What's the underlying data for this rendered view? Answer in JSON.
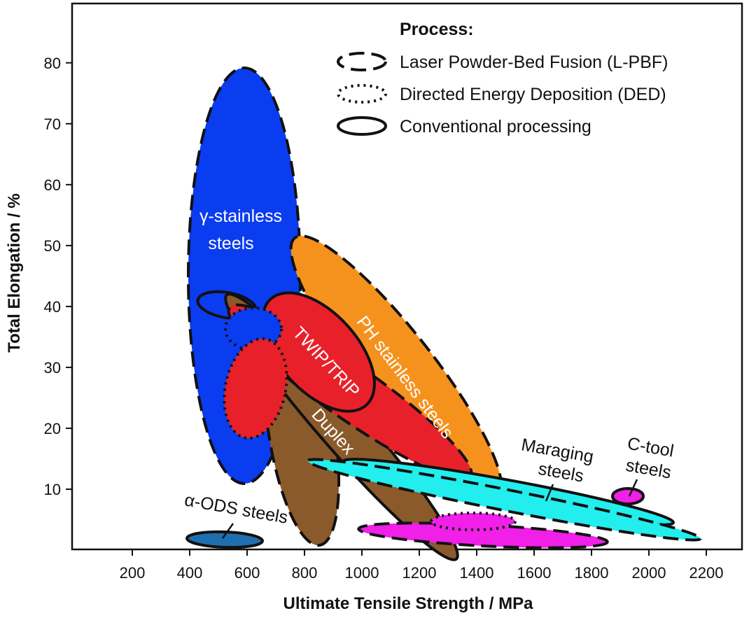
{
  "chart_data": {
    "type": "scatter",
    "xlabel": "Ultimate Tensile Strength / MPa",
    "ylabel": "Total Elongation / %",
    "xlim": [
      0,
      2350
    ],
    "ylim": [
      0,
      90
    ],
    "xticks": [
      200,
      400,
      600,
      800,
      1000,
      1200,
      1400,
      1600,
      1800,
      2000,
      2200
    ],
    "yticks": [
      10,
      20,
      30,
      40,
      50,
      60,
      70,
      80
    ],
    "legend": {
      "title": "Process:",
      "placement": "top-right",
      "entries": [
        {
          "style": "dashed",
          "label": "Laser Powder-Bed Fusion (L-PBF)"
        },
        {
          "style": "dotted",
          "label": "Directed Energy Deposition (DED)"
        },
        {
          "style": "solid",
          "label": "Conventional processing"
        }
      ]
    },
    "colors": {
      "gamma_stainless": "#0a3df0",
      "duplex": "#8b5a2b",
      "twip_trip": "#e8202a",
      "ph_stainless": "#f5921e",
      "maraging": "#22eeee",
      "c_tool": "#f020e8",
      "alpha_ods": "#1f6fb0"
    },
    "regions": [
      {
        "name": "γ-stainless steels",
        "process": "L-PBF",
        "color": "#0a3df0",
        "uts_range": [
          400,
          800
        ],
        "elongation_range": [
          11,
          79
        ]
      },
      {
        "name": "γ-stainless steels",
        "process": "Conventional",
        "color": "#0a3df0",
        "uts_range": [
          470,
          640
        ],
        "elongation_range": [
          37,
          42
        ]
      },
      {
        "name": "γ-stainless steels",
        "process": "DED",
        "color": "#0a3df0",
        "uts_range": [
          580,
          720
        ],
        "elongation_range": [
          29,
          40
        ]
      },
      {
        "name": "Duplex",
        "process": "L-PBF",
        "color": "#8b5a2b",
        "uts_range": [
          660,
          940
        ],
        "elongation_range": [
          1,
          39
        ]
      },
      {
        "name": "Duplex",
        "process": "Conventional",
        "color": "#8b5a2b",
        "uts_range": [
          800,
          1370
        ],
        "elongation_range": [
          1,
          32
        ]
      },
      {
        "name": "TWIP/TRIP",
        "process": "L-PBF",
        "color": "#e8202a",
        "uts_range": [
          680,
          1350
        ],
        "elongation_range": [
          10,
          40
        ]
      },
      {
        "name": "TWIP/TRIP",
        "process": "DED",
        "color": "#e8202a",
        "uts_range": [
          570,
          720
        ],
        "elongation_range": [
          18,
          35
        ]
      },
      {
        "name": "TWIP/TRIP",
        "process": "Conventional",
        "color": "#e8202a",
        "uts_range": [
          700,
          1030
        ],
        "elongation_range": [
          22,
          43
        ]
      },
      {
        "name": "PH stainless steels",
        "process": "L-PBF",
        "color": "#f5921e",
        "uts_range": [
          780,
          1480
        ],
        "elongation_range": [
          9,
          49
        ]
      },
      {
        "name": "Maraging steels",
        "process": "L-PBF",
        "color": "#22eeee",
        "uts_range": [
          830,
          2200
        ],
        "elongation_range": [
          1,
          16
        ]
      },
      {
        "name": "Maraging steels",
        "process": "Conventional",
        "color": "#22eeee",
        "uts_range": [
          1000,
          2100
        ],
        "elongation_range": [
          3,
          11
        ]
      },
      {
        "name": "C-tool steels",
        "process": "Conventional",
        "color": "#f020e8",
        "uts_range": [
          1910,
          1990
        ],
        "elongation_range": [
          8,
          11
        ]
      },
      {
        "name": "C-tool steels",
        "process": "L-PBF",
        "color": "#f020e8",
        "uts_range": [
          1000,
          1880
        ],
        "elongation_range": [
          1,
          6
        ]
      },
      {
        "name": "C-tool steels",
        "process": "DED",
        "color": "#f020e8",
        "uts_range": [
          1300,
          1520
        ],
        "elongation_range": [
          3,
          6
        ]
      },
      {
        "name": "α-ODS steels",
        "process": "Conventional",
        "color": "#1f6fb0",
        "uts_range": [
          410,
          670
        ],
        "elongation_range": [
          1,
          3
        ]
      }
    ],
    "labels": {
      "gamma_line1": "γ-stainless",
      "gamma_line2": "steels",
      "twip": "TWIP/TRIP",
      "ph": "PH stainless steels",
      "duplex": "Duplex",
      "maraging_line1": "Maraging",
      "maraging_line2": "steels",
      "ctool_line1": "C-tool",
      "ctool_line2": "steels",
      "ods": "α-ODS steels"
    }
  }
}
